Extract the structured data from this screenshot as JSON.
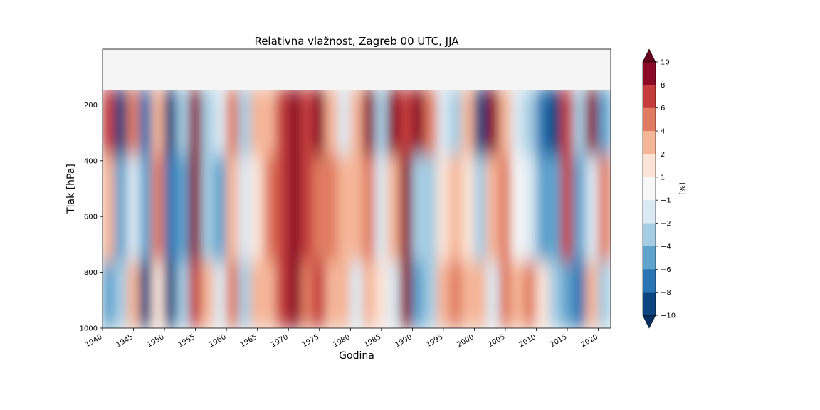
{
  "chart_data": {
    "type": "heatmap",
    "title": "Relativna vlažnost, Zagreb 00 UTC, JJA",
    "xlabel": "Godina",
    "ylabel": "Tlak [hPa]",
    "x_ticks": [
      "1940",
      "1945",
      "1950",
      "1955",
      "1960",
      "1965",
      "1970",
      "1975",
      "1980",
      "1985",
      "1990",
      "1995",
      "2000",
      "2005",
      "2010",
      "2015",
      "2020"
    ],
    "y_ticks": [
      "200",
      "400",
      "600",
      "800",
      "1000"
    ],
    "xlim": [
      1940,
      2022
    ],
    "ylim": [
      1000,
      0
    ],
    "y_inverted": true,
    "colorbar": {
      "label": "[%]",
      "levels": [
        "10",
        "8",
        "6",
        "4",
        "2",
        "1",
        "−1",
        "−2",
        "−4",
        "−6",
        "−8",
        "−10"
      ],
      "colors": [
        "#67001f",
        "#8b0a25",
        "#c43c3c",
        "#e07b62",
        "#f5b597",
        "#fbe3d6",
        "#f7f7f7",
        "#dbe9f3",
        "#a6cde3",
        "#5fa3cd",
        "#2b74b3",
        "#0c457f",
        "#053061"
      ],
      "extend": "both"
    },
    "missing_region_color": "#f5f5f5",
    "columns": [
      {
        "year": 1941,
        "upper": 7,
        "mid": 3,
        "low": -5
      },
      {
        "year": 1943,
        "upper": -9,
        "mid": -6,
        "low": -3
      },
      {
        "year": 1945,
        "upper": 5,
        "mid": -2,
        "low": 2
      },
      {
        "year": 1947,
        "upper": -8,
        "mid": -5,
        "low": -10
      },
      {
        "year": 1949,
        "upper": 3,
        "mid": 4,
        "low": 1
      },
      {
        "year": 1951,
        "upper": -9,
        "mid": -7,
        "low": -10
      },
      {
        "year": 1953,
        "upper": -4,
        "mid": -5,
        "low": -3
      },
      {
        "year": 1955,
        "upper": 8,
        "mid": 9,
        "low": 6
      },
      {
        "year": 1957,
        "upper": -3,
        "mid": -4,
        "low": 3
      },
      {
        "year": 1959,
        "upper": -2,
        "mid": -5,
        "low": -2
      },
      {
        "year": 1961,
        "upper": 4,
        "mid": 2,
        "low": 5
      },
      {
        "year": 1963,
        "upper": -3,
        "mid": -2,
        "low": -3
      },
      {
        "year": 1965,
        "upper": 2,
        "mid": 1,
        "low": 2
      },
      {
        "year": 1967,
        "upper": 3,
        "mid": 4,
        "low": 3
      },
      {
        "year": 1969,
        "upper": 6,
        "mid": 7,
        "low": 6
      },
      {
        "year": 1971,
        "upper": 9,
        "mid": 8,
        "low": 9
      },
      {
        "year": 1973,
        "upper": 7,
        "mid": 6,
        "low": 5
      },
      {
        "year": 1975,
        "upper": 8,
        "mid": 5,
        "low": 7
      },
      {
        "year": 1977,
        "upper": 3,
        "mid": 4,
        "low": 3
      },
      {
        "year": 1979,
        "upper": -2,
        "mid": 2,
        "low": 3
      },
      {
        "year": 1981,
        "upper": 2,
        "mid": 3,
        "low": -2
      },
      {
        "year": 1983,
        "upper": 8,
        "mid": 5,
        "low": 2
      },
      {
        "year": 1985,
        "upper": -3,
        "mid": -2,
        "low": 1
      },
      {
        "year": 1987,
        "upper": 9,
        "mid": 2,
        "low": -2
      },
      {
        "year": 1989,
        "upper": 6,
        "mid": 9,
        "low": 8
      },
      {
        "year": 1991,
        "upper": 9,
        "mid": -4,
        "low": -6
      },
      {
        "year": 1993,
        "upper": 5,
        "mid": -3,
        "low": -3
      },
      {
        "year": 1995,
        "upper": -2,
        "mid": 1,
        "low": 3
      },
      {
        "year": 1997,
        "upper": -4,
        "mid": 3,
        "low": 4
      },
      {
        "year": 1999,
        "upper": 2,
        "mid": 1,
        "low": 3
      },
      {
        "year": 2001,
        "upper": -9,
        "mid": -3,
        "low": 2
      },
      {
        "year": 2003,
        "upper": 9,
        "mid": 2,
        "low": -2
      },
      {
        "year": 2005,
        "upper": 3,
        "mid": 5,
        "low": 4
      },
      {
        "year": 2007,
        "upper": -2,
        "mid": -1,
        "low": 3
      },
      {
        "year": 2009,
        "upper": -3,
        "mid": -2,
        "low": 5
      },
      {
        "year": 2011,
        "upper": -7,
        "mid": -5,
        "low": 1
      },
      {
        "year": 2013,
        "upper": -9,
        "mid": -6,
        "low": -4
      },
      {
        "year": 2015,
        "upper": 6,
        "mid": 7,
        "low": -5
      },
      {
        "year": 2017,
        "upper": -4,
        "mid": -5,
        "low": -8
      },
      {
        "year": 2019,
        "upper": 8,
        "mid": -2,
        "low": 3
      },
      {
        "year": 2021,
        "upper": -5,
        "mid": 4,
        "low": -3
      }
    ]
  }
}
